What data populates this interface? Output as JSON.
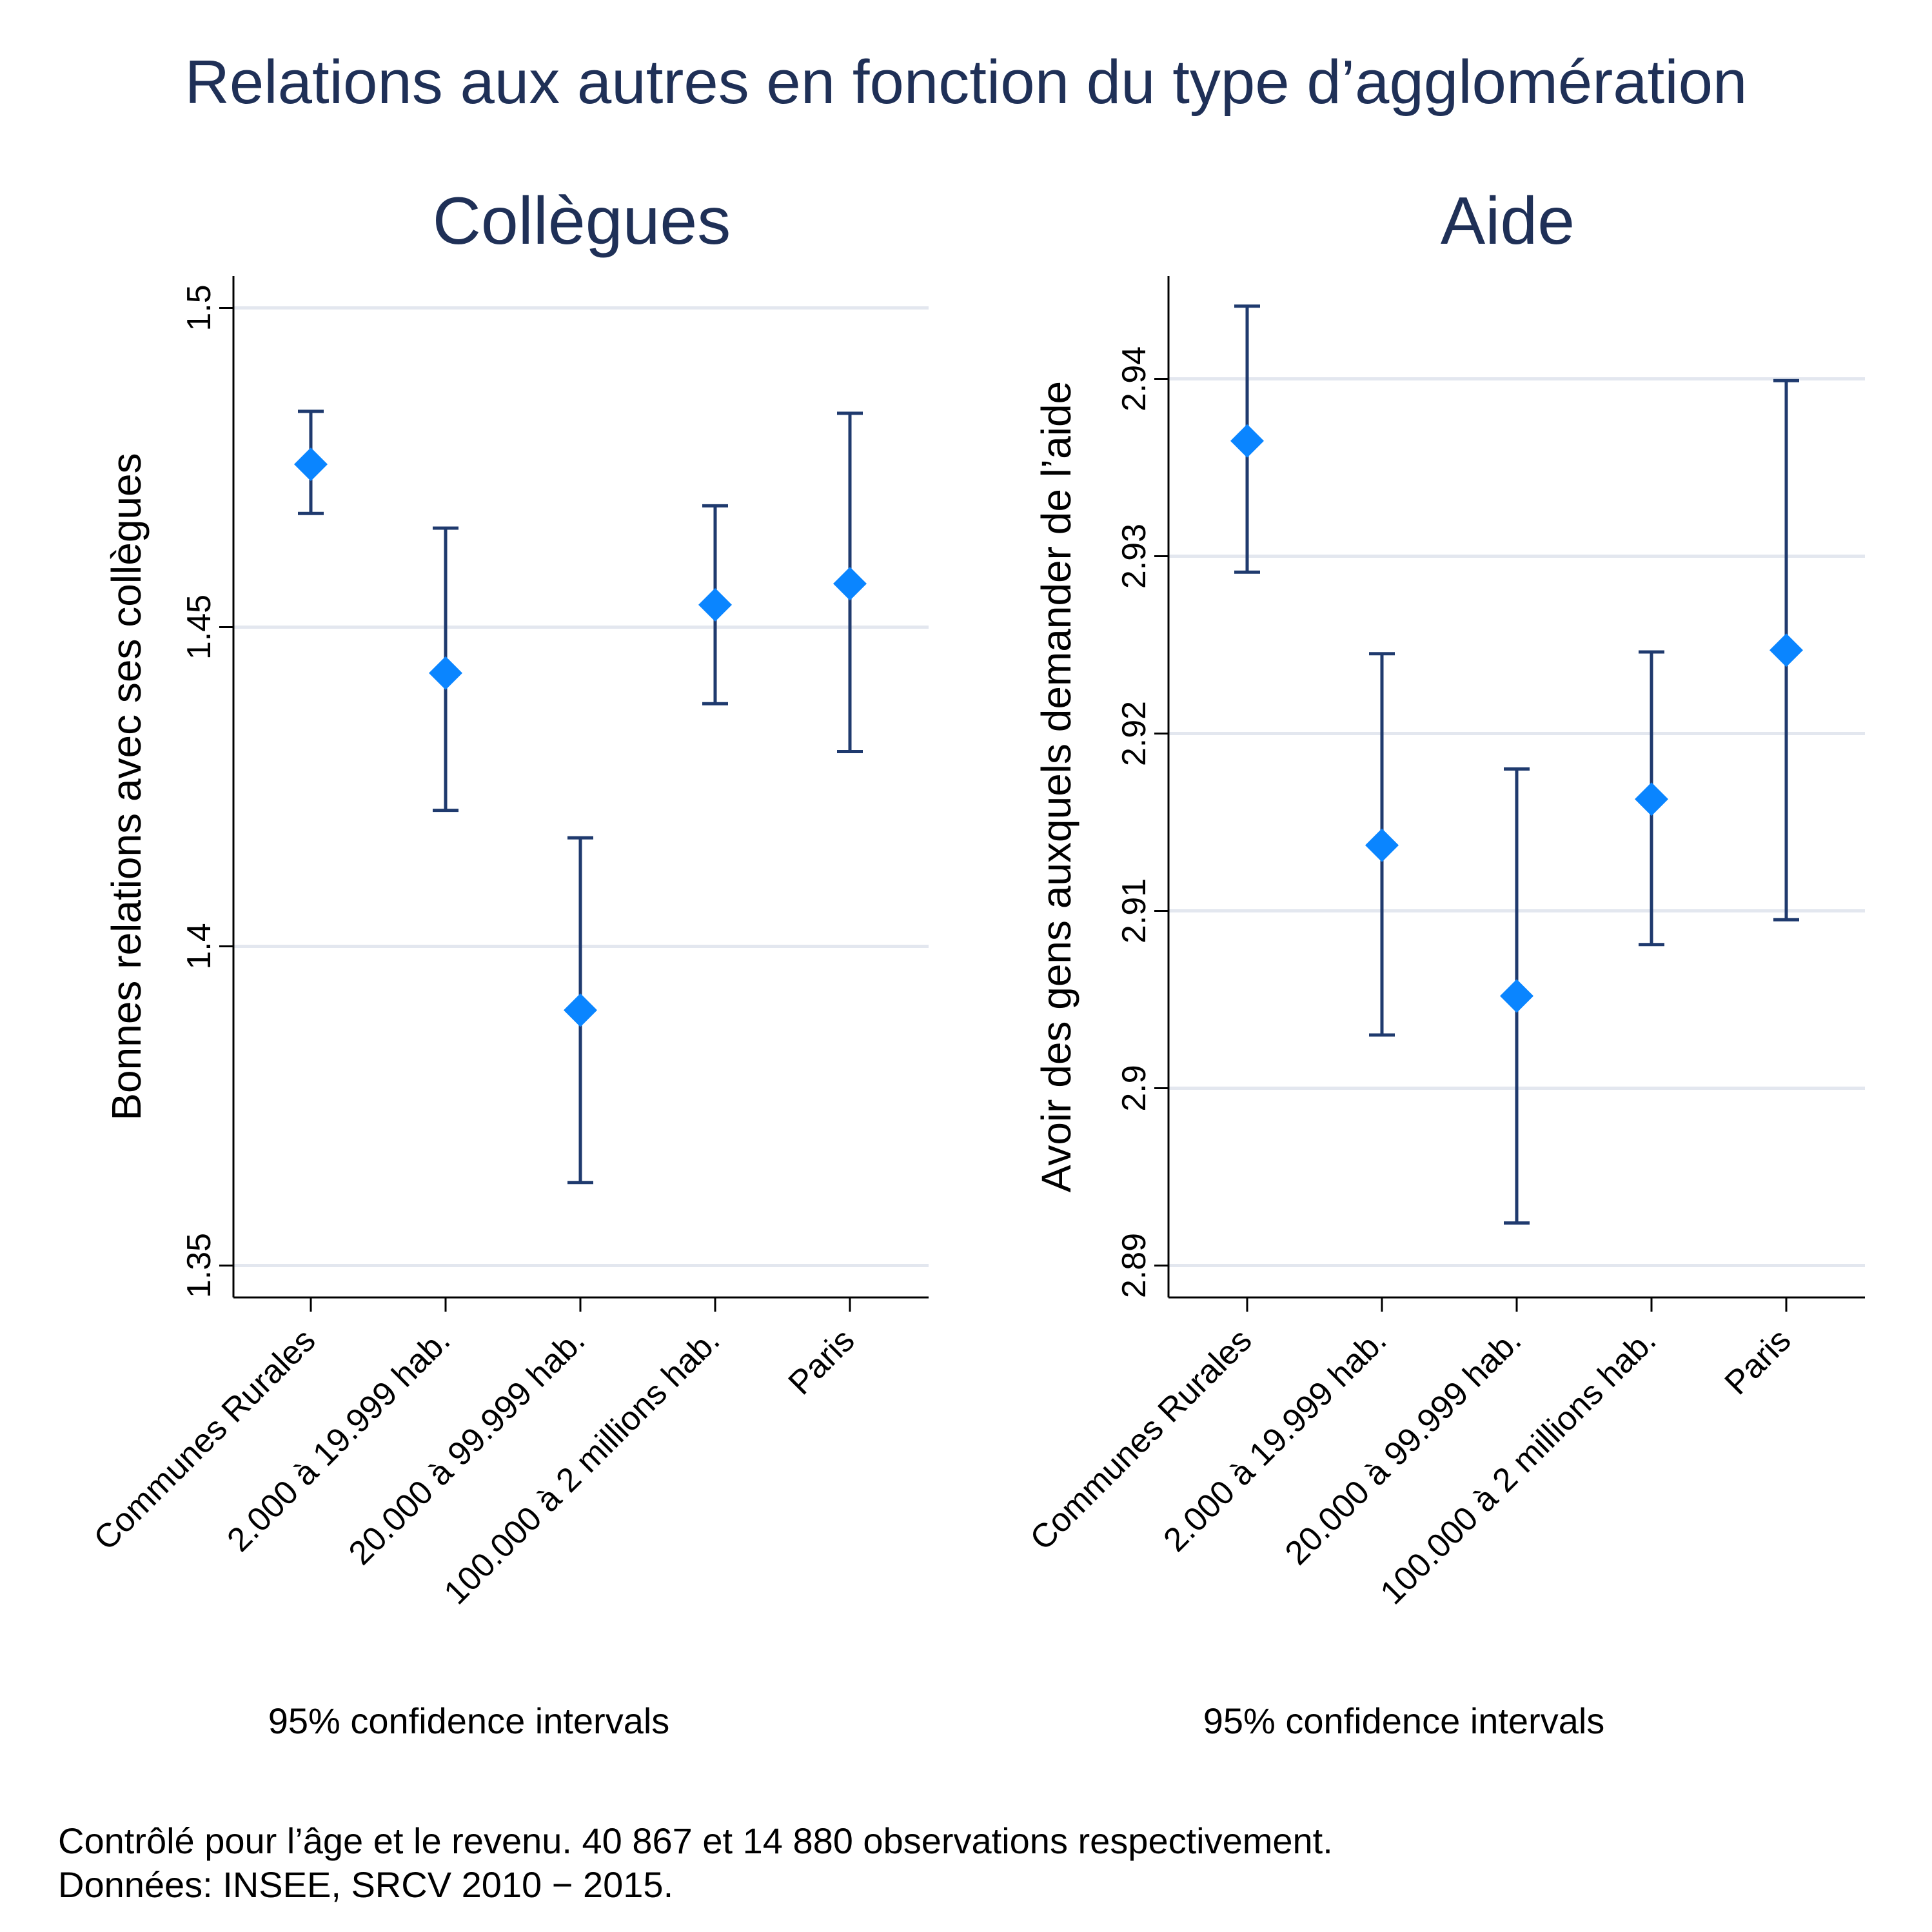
{
  "title": "Relations aux autres en fonction du type d’agglomération",
  "chart_data": [
    {
      "type": "scatter",
      "title": "Collègues",
      "xlabel": "",
      "ylabel": "Bonnes relations avec ses collègues",
      "categories": [
        "Communes Rurales",
        "2.000 à 19.999 hab.",
        "20.000 à 99.999 hab.",
        "100.000 à 2 millions hab.",
        "Paris"
      ],
      "values": [
        1.4755,
        1.4428,
        1.39,
        1.4535,
        1.4568
      ],
      "ci_low": [
        1.4678,
        1.4213,
        1.363,
        1.438,
        1.4305
      ],
      "ci_high": [
        1.4838,
        1.4655,
        1.417,
        1.469,
        1.4835
      ],
      "yticks": [
        1.35,
        1.4,
        1.45,
        1.5
      ],
      "ytick_labels": [
        "1.35",
        "1.4",
        "1.45",
        "1.5"
      ],
      "ylim": [
        1.345,
        1.505
      ],
      "grid": true,
      "note": "95% confidence intervals"
    },
    {
      "type": "scatter",
      "title": "Aide",
      "xlabel": "",
      "ylabel": "Avoir des gens auxquels demander de l’aide",
      "categories": [
        "Communes Rurales",
        "2.000 à 19.999 hab.",
        "20.000 à 99.999 hab.",
        "100.000 à 2 millions hab.",
        "Paris"
      ],
      "values": [
        2.9365,
        2.9137,
        2.9052,
        2.9163,
        2.9247
      ],
      "ci_low": [
        2.9291,
        2.903,
        2.8924,
        2.9081,
        2.9095
      ],
      "ci_high": [
        2.9441,
        2.9245,
        2.918,
        2.9246,
        2.9399
      ],
      "yticks": [
        2.89,
        2.9,
        2.91,
        2.92,
        2.93,
        2.94
      ],
      "ytick_labels": [
        "2.89",
        "2.9",
        "2.91",
        "2.92",
        "2.93",
        "2.94"
      ],
      "ylim": [
        2.8882,
        2.9458
      ],
      "grid": true,
      "note": "95% confidence intervals"
    }
  ],
  "footnote": {
    "line1": "Contrôlé pour l’âge et le revenu. 40 867 et 14 880 observations respectivement.",
    "line2": "Données: INSEE, SRCV 2010 − 2015."
  },
  "colors": {
    "marker": "#0a85ff",
    "errorbar": "#1f3a6e",
    "grid": "#e3e7ef",
    "text": "#1f3057"
  }
}
